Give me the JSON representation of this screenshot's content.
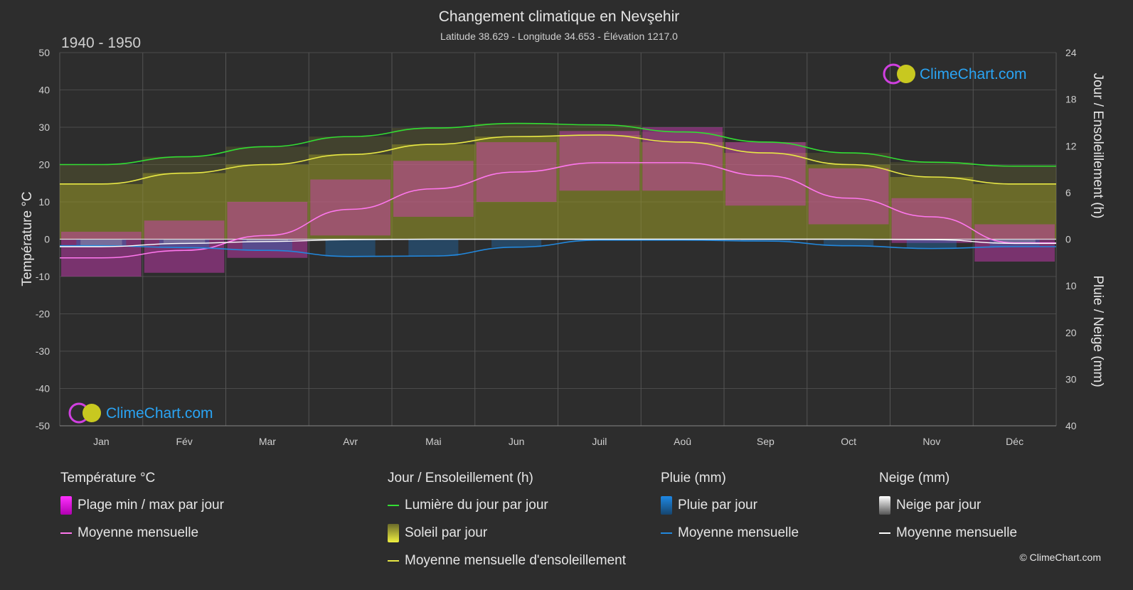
{
  "title": "Changement climatique en Nevşehir",
  "subtitle": "Latitude 38.629 - Longitude 34.653 - Élévation 1217.0",
  "period": "1940 - 1950",
  "brand": "ClimeChart.com",
  "copyright": "© ClimeChart.com",
  "colors": {
    "background": "#2d2d2d",
    "daylight": "#33dd33",
    "sunshine_mean": "#e8e845",
    "sunshine_fill": "#9c9c27",
    "temp_range": "#e040c8",
    "temp_mean": "#ff77ee",
    "rain": "#1e78c8",
    "rain_mean": "#2288dd",
    "snow": "#cfcfcf",
    "snow_mean": "#ffffff",
    "brand_text": "#2aa4f4"
  },
  "chart_data": {
    "type": "line",
    "categories": [
      "Jan",
      "Fév",
      "Mar",
      "Avr",
      "Mai",
      "Jun",
      "Juil",
      "Aoû",
      "Sep",
      "Oct",
      "Nov",
      "Déc"
    ],
    "ylabel": "Température °C",
    "ylabel_right_top": "Jour / Ensoleillement (h)",
    "ylabel_right_bottom": "Pluie / Neige (mm)",
    "ylim": [
      -50,
      50
    ],
    "yticks": [
      "50",
      "40",
      "30",
      "20",
      "10",
      "0",
      "-10",
      "-20",
      "-30",
      "-40",
      "-50"
    ],
    "hours_range": [
      0,
      24
    ],
    "hours_ticks": [
      "24",
      "18",
      "12",
      "6",
      "0"
    ],
    "precip_range_mm": [
      0,
      40
    ],
    "precip_ticks": [
      "10",
      "20",
      "30",
      "40"
    ],
    "grid": true,
    "series": [
      {
        "name": "Lumière du jour par jour",
        "unit": "h",
        "values": [
          9.6,
          10.6,
          11.9,
          13.2,
          14.3,
          14.9,
          14.7,
          13.8,
          12.5,
          11.1,
          9.9,
          9.4
        ]
      },
      {
        "name": "Moyenne mensuelle d'ensoleillement",
        "unit": "h",
        "values": [
          7.1,
          8.5,
          9.6,
          10.9,
          12.2,
          13.2,
          13.4,
          12.5,
          11.1,
          9.6,
          8.0,
          7.1
        ]
      },
      {
        "name": "Moyenne mensuelle",
        "group": "Température °C",
        "unit": "°C",
        "values": [
          -5.0,
          -3.0,
          1.0,
          8.0,
          13.5,
          18.0,
          20.5,
          20.5,
          17.0,
          11.0,
          6.0,
          -1.0
        ]
      },
      {
        "name": "Plage min / max par jour",
        "unit": "°C",
        "min": [
          -10,
          -9,
          -5,
          1,
          6,
          10,
          13,
          13,
          9,
          4,
          -1,
          -6
        ],
        "max": [
          2,
          5,
          10,
          16,
          21,
          26,
          29,
          30,
          26,
          19,
          11,
          4
        ]
      },
      {
        "name": "Moyenne mensuelle",
        "group": "Pluie (mm)",
        "unit": "mm",
        "values": [
          1.4,
          1.8,
          2.4,
          3.7,
          3.6,
          1.7,
          0.2,
          0.2,
          0.4,
          1.4,
          2.0,
          1.6
        ]
      },
      {
        "name": "Moyenne mensuelle",
        "group": "Neige (mm)",
        "unit": "mm",
        "values": [
          1.6,
          0.9,
          0.5,
          0.1,
          0.0,
          0.0,
          0.0,
          0.0,
          0.0,
          0.0,
          0.1,
          0.9
        ]
      }
    ]
  },
  "legend": {
    "temperature": {
      "heading": "Température °C",
      "range": "Plage min / max par jour",
      "mean": "Moyenne mensuelle"
    },
    "sun": {
      "heading": "Jour / Ensoleillement (h)",
      "daylight": "Lumière du jour par jour",
      "sunshine": "Soleil par jour",
      "sunshine_mean": "Moyenne mensuelle d'ensoleillement"
    },
    "rain": {
      "heading": "Pluie (mm)",
      "daily": "Pluie par jour",
      "mean": "Moyenne mensuelle"
    },
    "snow": {
      "heading": "Neige (mm)",
      "daily": "Neige par jour",
      "mean": "Moyenne mensuelle"
    }
  }
}
